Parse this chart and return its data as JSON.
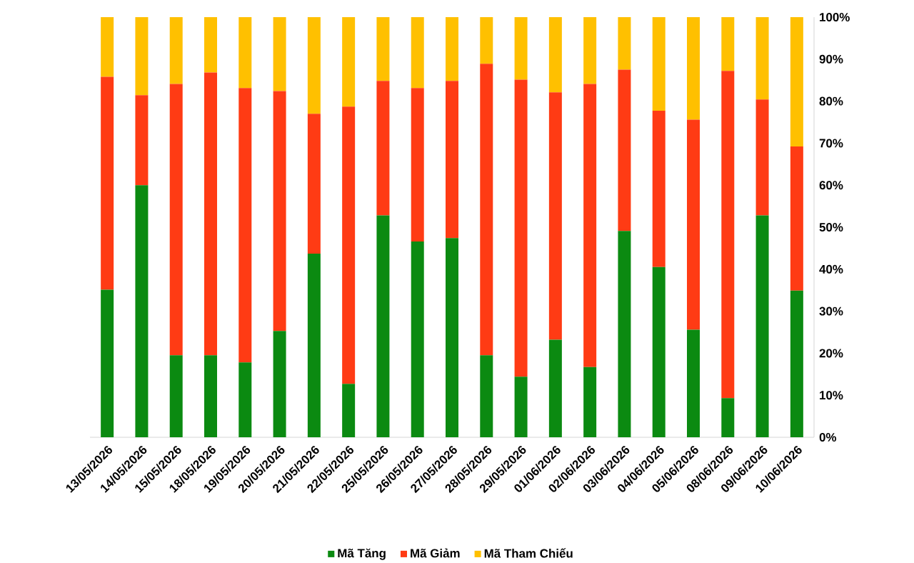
{
  "chart_data": {
    "type": "bar",
    "stacked": true,
    "categories": [
      "13/05/2026",
      "14/05/2026",
      "15/05/2026",
      "18/05/2026",
      "19/05/2026",
      "20/05/2026",
      "21/05/2026",
      "22/05/2026",
      "25/05/2026",
      "26/05/2026",
      "27/05/2026",
      "28/05/2026",
      "29/05/2026",
      "01/06/2026",
      "02/06/2026",
      "03/06/2026",
      "04/06/2026",
      "05/06/2026",
      "08/06/2026",
      "09/06/2026",
      "10/06/2026"
    ],
    "series": [
      {
        "name": "Mã Tăng",
        "color": "#0b8a11",
        "values": [
          35.1,
          60.0,
          19.5,
          19.5,
          17.8,
          25.3,
          43.7,
          12.7,
          52.8,
          46.6,
          47.4,
          19.5,
          14.4,
          23.2,
          16.7,
          49.1,
          40.5,
          25.6,
          9.3,
          52.8,
          34.9
        ]
      },
      {
        "name": "Mã Giảm",
        "color": "#ff3b14",
        "values": [
          50.7,
          21.4,
          64.6,
          67.3,
          65.3,
          57.1,
          33.3,
          66.0,
          32.0,
          36.5,
          37.4,
          69.4,
          70.7,
          58.9,
          67.4,
          38.4,
          37.2,
          50.0,
          77.9,
          27.6,
          34.3
        ]
      },
      {
        "name": "Mã Tham Chiếu",
        "color": "#ffc000",
        "values": [
          14.2,
          18.6,
          15.9,
          13.2,
          16.9,
          17.6,
          23.0,
          21.3,
          15.2,
          16.9,
          15.2,
          11.1,
          14.9,
          17.9,
          15.9,
          12.5,
          22.3,
          24.4,
          12.8,
          19.6,
          30.8
        ]
      }
    ],
    "ylim": [
      0,
      100
    ],
    "yticks": [
      {
        "value": 0,
        "label": "0%"
      },
      {
        "value": 10,
        "label": "10%"
      },
      {
        "value": 20,
        "label": "20%"
      },
      {
        "value": 30,
        "label": "30%"
      },
      {
        "value": 40,
        "label": "40%"
      },
      {
        "value": 50,
        "label": "50%"
      },
      {
        "value": 60,
        "label": "60%"
      },
      {
        "value": 70,
        "label": "70%"
      },
      {
        "value": 80,
        "label": "80%"
      },
      {
        "value": 90,
        "label": "90%"
      },
      {
        "value": 100,
        "label": "100%"
      }
    ],
    "legend": "bottom"
  }
}
